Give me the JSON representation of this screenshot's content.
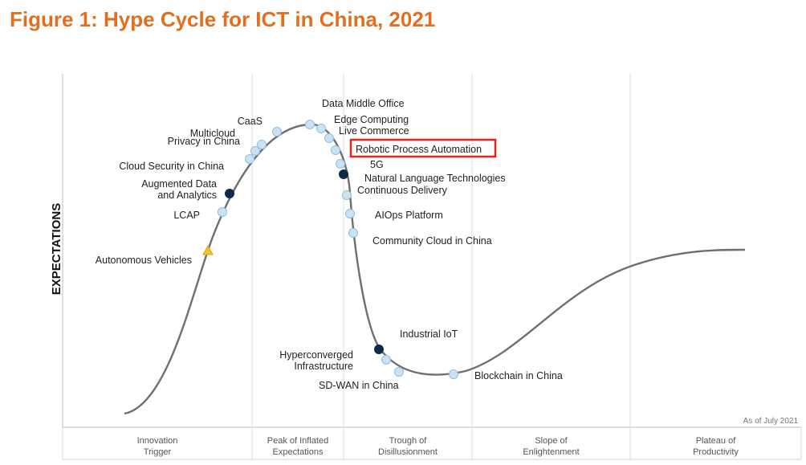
{
  "title": "Figure 1: Hype Cycle for ICT in China, 2021",
  "chart_data": {
    "type": "hype-cycle",
    "ylabel": "EXPECTATIONS",
    "as_of": "As of July 2021",
    "highlighted": "Robotic Process Automation",
    "highlight_color": "#e8231c",
    "curve_color": "#6f6f6f",
    "phases": [
      {
        "lines": [
          "Innovation",
          "Trigger"
        ]
      },
      {
        "lines": [
          "Peak of Inflated",
          "Expectations"
        ]
      },
      {
        "lines": [
          "Trough of",
          "Disillusionment"
        ]
      },
      {
        "lines": [
          "Slope of",
          "Enlightenment"
        ]
      },
      {
        "lines": [
          "Plateau of",
          "Productivity"
        ]
      }
    ],
    "marker_types": {
      "light": {
        "fill": "#c9e3f2",
        "stroke": "#8fbfdb"
      },
      "dark": {
        "fill": "#0d2a4a",
        "stroke": "#0d2a4a"
      },
      "yellow": {
        "fill": "#f2c12e",
        "stroke": "#d9a514"
      }
    },
    "technologies": [
      {
        "name": "Autonomous Vehicles",
        "marker": "yellow"
      },
      {
        "name": "LCAP",
        "marker": "light"
      },
      {
        "name": "Augmented Data and Analytics",
        "lines": [
          "Augmented Data",
          "and Analytics"
        ],
        "marker": "dark"
      },
      {
        "name": "Cloud Security in China",
        "marker": "light"
      },
      {
        "name": "Privacy in China",
        "marker": "light"
      },
      {
        "name": "Multicloud",
        "marker": "light"
      },
      {
        "name": "CaaS",
        "marker": "light"
      },
      {
        "name": "Data Middle Office",
        "marker": "light"
      },
      {
        "name": "Edge Computing",
        "marker": "light"
      },
      {
        "name": "Live Commerce",
        "marker": "light"
      },
      {
        "name": "Robotic Process Automation",
        "marker": "light"
      },
      {
        "name": "5G",
        "marker": "light"
      },
      {
        "name": "Natural Language Technologies",
        "marker": "dark"
      },
      {
        "name": "Continuous Delivery",
        "marker": "light"
      },
      {
        "name": "AIOps Platform",
        "marker": "light"
      },
      {
        "name": "Community Cloud in China",
        "marker": "light"
      },
      {
        "name": "Industrial IoT",
        "marker": "dark"
      },
      {
        "name": "Hyperconverged Infrastructure",
        "lines": [
          "Hyperconverged",
          "Infrastructure"
        ],
        "marker": "light"
      },
      {
        "name": "SD-WAN in China",
        "marker": "light"
      },
      {
        "name": "Blockchain in China",
        "marker": "light"
      }
    ]
  }
}
